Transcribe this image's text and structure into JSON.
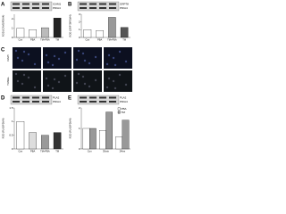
{
  "panels": [
    {
      "label": "A",
      "blot": [
        "ICAM1",
        "PDIA4"
      ],
      "chart": {
        "type": "bar",
        "ylabel": "ROD (ICAM1/PDIA4)",
        "categories": [
          "Con",
          "PBA",
          "TM+PBA",
          "TM"
        ],
        "values": [
          1.0,
          0.85,
          1.05,
          2.1
        ],
        "colors": [
          "#ffffff",
          "#ffffff",
          "#bbbbbb",
          "#222222"
        ],
        "ylim": [
          0,
          2.5
        ],
        "yticks": [
          0,
          1,
          2
        ]
      }
    },
    {
      "label": "B",
      "blot": [
        "GRP78",
        "PDIA4"
      ],
      "chart": {
        "type": "bar",
        "ylabel": "ROD (GRP78/PDIA4)",
        "categories": [
          "Con",
          "PBA",
          "TM+PBA",
          "TM"
        ],
        "values": [
          1.0,
          0.9,
          2.6,
          1.3
        ],
        "colors": [
          "#ffffff",
          "#ffffff",
          "#999999",
          "#555555"
        ],
        "ylim": [
          0,
          3
        ],
        "yticks": [
          0,
          1,
          2,
          3
        ]
      }
    },
    {
      "label": "C",
      "rows": [
        "DAPI",
        "TUNEL"
      ]
    },
    {
      "label": "D",
      "blot": [
        "PLA2",
        "PDIA4"
      ],
      "chart": {
        "type": "bar",
        "ylabel": "ROD (PLA2/PDIA4)",
        "categories": [
          "Con",
          "PBA",
          "TM+PBA",
          "TM"
        ],
        "values": [
          1.0,
          0.6,
          0.5,
          0.6
        ],
        "colors": [
          "#ffffff",
          "#dddddd",
          "#999999",
          "#333333"
        ],
        "ylim": [
          0,
          1.5
        ],
        "yticks": [
          0,
          0.5,
          1,
          1.5
        ]
      }
    },
    {
      "label": "E",
      "blot": [
        "PLA2",
        "PDIA4"
      ],
      "chart": {
        "type": "grouped-bar",
        "ylabel": "ROD (PLA2/PDIA4)",
        "categories": [
          "Con",
          "30min",
          "24hrs"
        ],
        "series": [
          {
            "name": "PBA",
            "color": "#ffffff",
            "values": [
              1.0,
              0.9,
              0.6
            ]
          },
          {
            "name": "TM",
            "color": "#999999",
            "values": [
              1.0,
              1.8,
              1.4
            ]
          }
        ],
        "ylim": [
          0,
          2
        ],
        "yticks": [
          0,
          1,
          2
        ]
      }
    }
  ]
}
